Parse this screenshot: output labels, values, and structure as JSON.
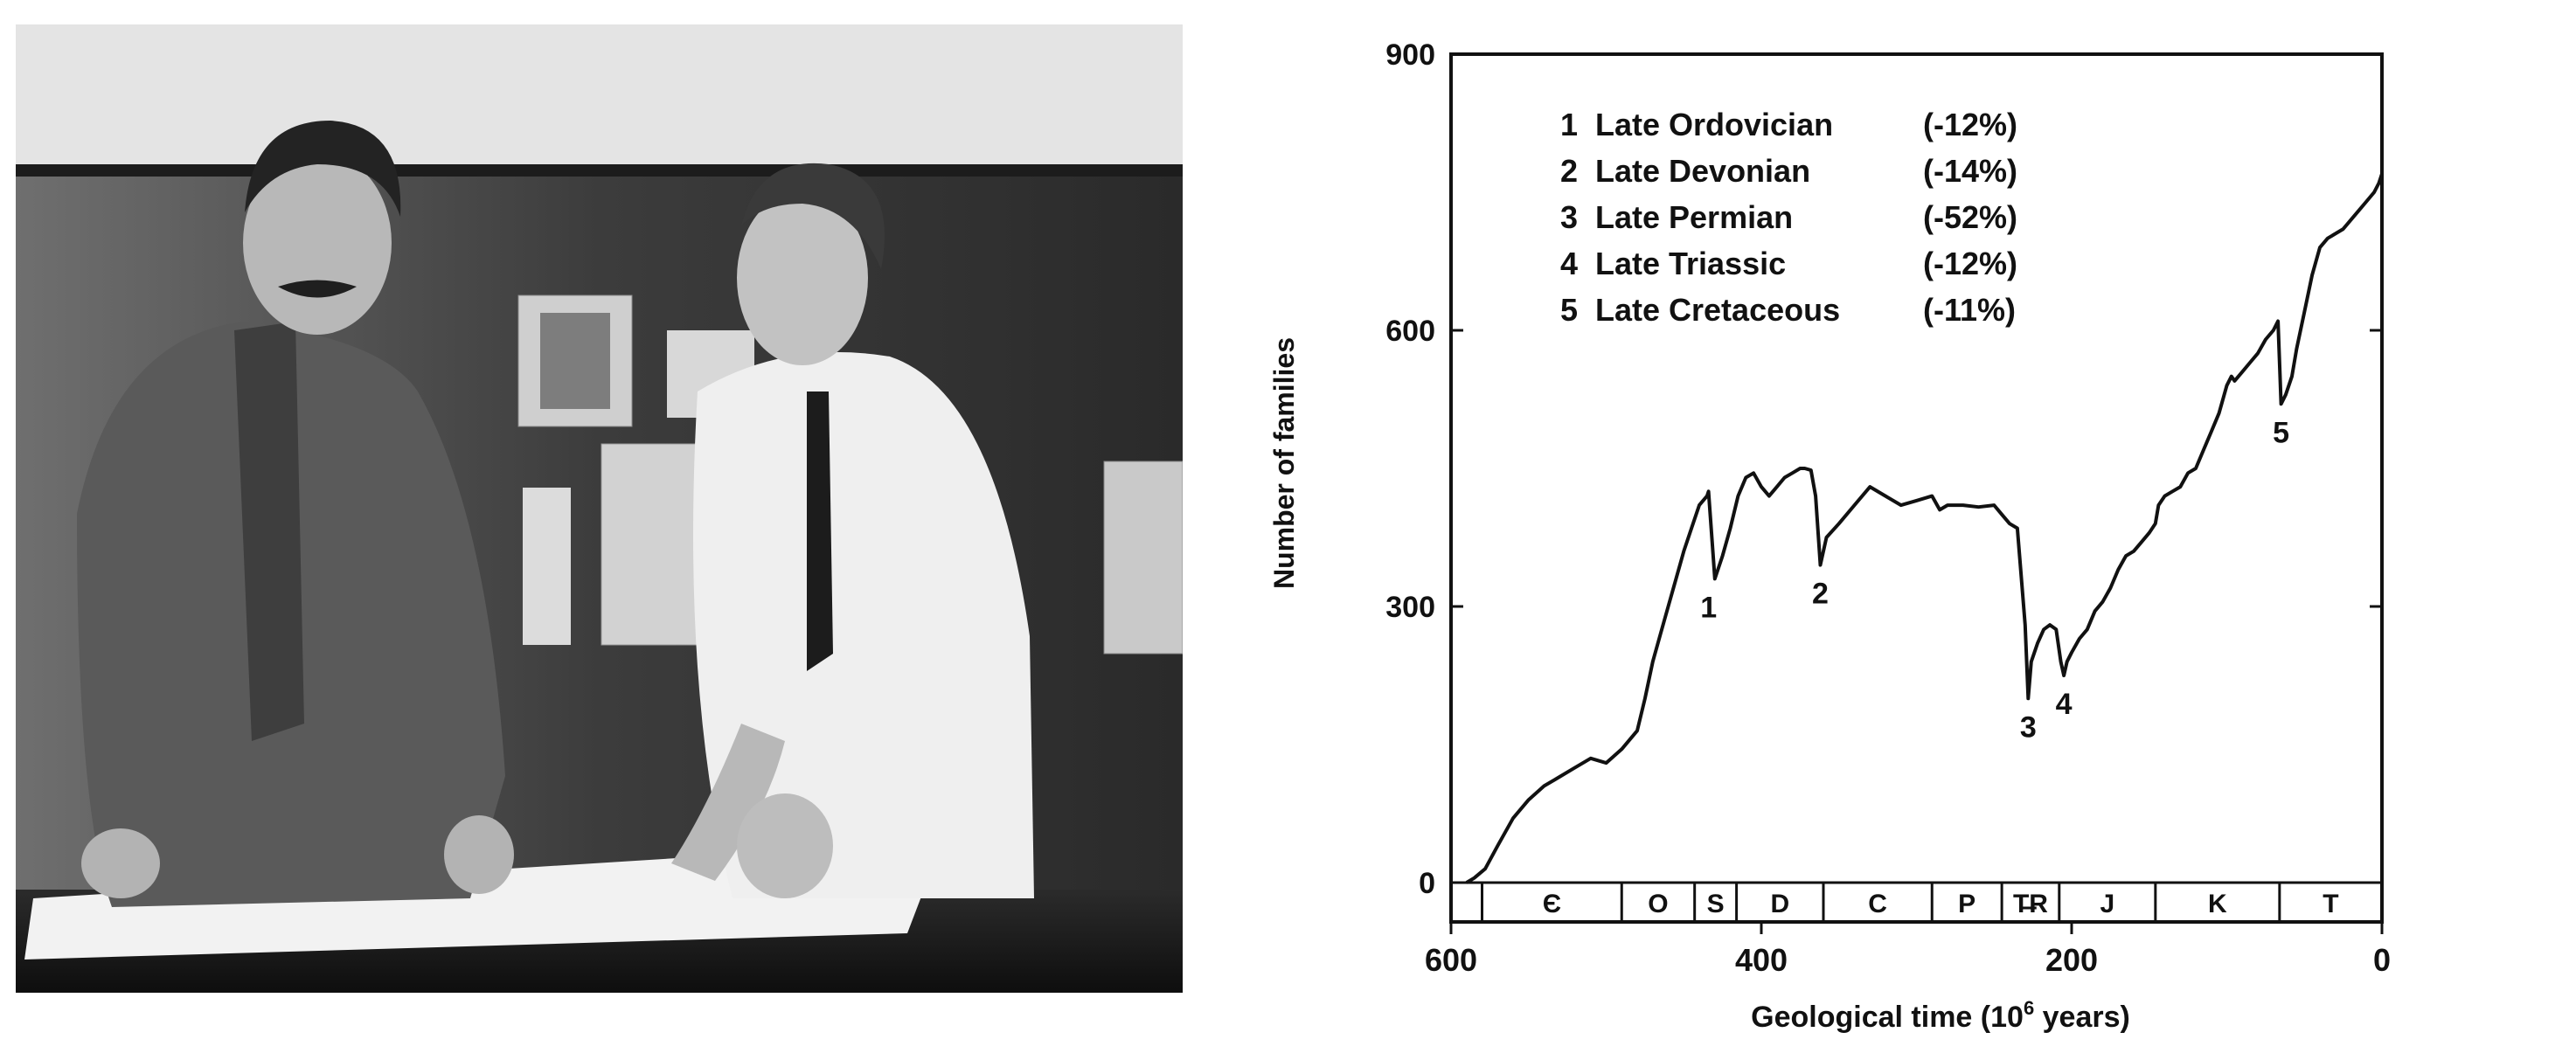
{
  "photo": {
    "description_icon": "two-men-at-table-photo"
  },
  "chart_data": {
    "type": "line",
    "xlabel": "Geological time (10^6 years)",
    "xlabel_main": "Geological time (10",
    "xlabel_sup": "6",
    "xlabel_end": " years)",
    "ylabel": "Number of families",
    "xlim": [
      600,
      0
    ],
    "ylim": [
      0,
      900
    ],
    "x_reversed": true,
    "x_ticks": [
      600,
      400,
      200,
      0
    ],
    "y_ticks": [
      0,
      300,
      600,
      900
    ],
    "grid": false,
    "series": [
      {
        "x": [
          590,
          585,
          578,
          570,
          560,
          550,
          540,
          530,
          520,
          510,
          500,
          490,
          480,
          475,
          470,
          465,
          460,
          455,
          450,
          445,
          440,
          435,
          434,
          430,
          425,
          420,
          415,
          410,
          405,
          400,
          395,
          390,
          385,
          380,
          375,
          372,
          368,
          365,
          362,
          358,
          350,
          340,
          330,
          320,
          310,
          300,
          290,
          285,
          280,
          270,
          260,
          250,
          245,
          240,
          235,
          230,
          228,
          226,
          222,
          218,
          214,
          210,
          207,
          205,
          203,
          200,
          195,
          190,
          185,
          180,
          175,
          170,
          165,
          160,
          155,
          150,
          146,
          144,
          140,
          135,
          130,
          125,
          120,
          115,
          110,
          105,
          100,
          97,
          95,
          90,
          85,
          80,
          75,
          70,
          67,
          65,
          62,
          58,
          55,
          50,
          45,
          40,
          35,
          30,
          25,
          20,
          15,
          10,
          5,
          2,
          0
        ],
        "y": [
          0,
          5,
          15,
          40,
          70,
          90,
          105,
          115,
          125,
          135,
          130,
          145,
          165,
          200,
          240,
          270,
          300,
          330,
          360,
          385,
          410,
          420,
          425,
          330,
          355,
          385,
          420,
          440,
          445,
          430,
          420,
          430,
          440,
          445,
          450,
          450,
          448,
          420,
          345,
          375,
          390,
          410,
          430,
          420,
          410,
          415,
          420,
          405,
          410,
          410,
          408,
          410,
          400,
          390,
          385,
          280,
          200,
          240,
          260,
          275,
          280,
          275,
          240,
          225,
          240,
          250,
          265,
          275,
          295,
          305,
          320,
          340,
          355,
          360,
          370,
          380,
          390,
          410,
          420,
          425,
          430,
          445,
          450,
          470,
          490,
          510,
          540,
          550,
          545,
          555,
          565,
          575,
          590,
          600,
          610,
          520,
          530,
          550,
          580,
          620,
          660,
          690,
          700,
          705,
          710,
          720,
          730,
          740,
          750,
          760,
          770
        ]
      }
    ],
    "legend": [
      {
        "num": "1",
        "name": "Late Ordovician",
        "pct": "(-12%)"
      },
      {
        "num": "2",
        "name": "Late Devonian",
        "pct": "(-14%)"
      },
      {
        "num": "3",
        "name": "Late Permian",
        "pct": "(-52%)"
      },
      {
        "num": "4",
        "name": "Late Triassic",
        "pct": "(-12%)"
      },
      {
        "num": "5",
        "name": "Late Cretaceous",
        "pct": "(-11%)"
      }
    ],
    "legend_position": "top-left",
    "annotations": [
      {
        "label": "1",
        "x": 434,
        "y": 330
      },
      {
        "label": "2",
        "x": 362,
        "y": 345
      },
      {
        "label": "3",
        "x": 228,
        "y": 200
      },
      {
        "label": "4",
        "x": 205,
        "y": 225
      },
      {
        "label": "5",
        "x": 65,
        "y": 520
      }
    ],
    "periods": [
      {
        "label": "Є",
        "from": 580,
        "to": 490
      },
      {
        "label": "O",
        "from": 490,
        "to": 443
      },
      {
        "label": "S",
        "from": 443,
        "to": 416
      },
      {
        "label": "D",
        "from": 416,
        "to": 360
      },
      {
        "label": "C",
        "from": 360,
        "to": 290
      },
      {
        "label": "P",
        "from": 290,
        "to": 245
      },
      {
        "label": "T̶R",
        "from": 245,
        "to": 208
      },
      {
        "label": "J",
        "from": 208,
        "to": 146
      },
      {
        "label": "K",
        "from": 146,
        "to": 66
      },
      {
        "label": "T",
        "from": 66,
        "to": 0
      }
    ]
  }
}
